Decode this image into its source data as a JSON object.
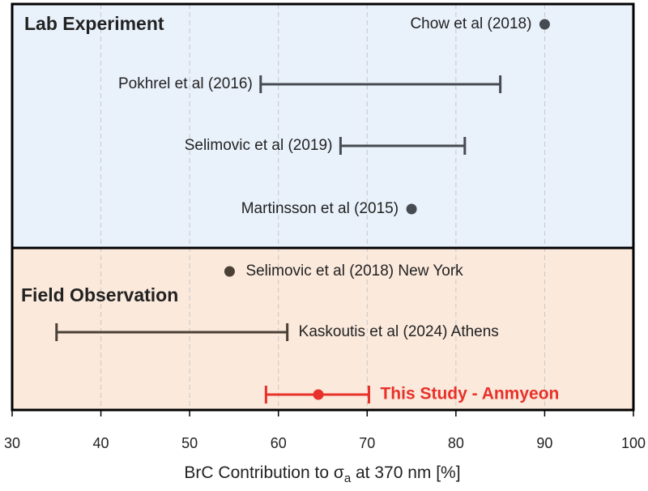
{
  "chart_data": {
    "type": "range",
    "xlabel": [
      "BrC Contribution to σ",
      "a",
      " at 370 nm [%]"
    ],
    "xlim": [
      30,
      100
    ],
    "xticks": [
      30,
      40,
      50,
      60,
      70,
      80,
      90,
      100
    ],
    "grid": true,
    "groups": [
      {
        "name": "Lab Experiment",
        "color": "#e9f1fb",
        "mark_color": "#464b52",
        "items": [
          {
            "label": "Chow et al (2018)",
            "value": 90
          },
          {
            "label": "Pokhrel et al (2016)",
            "low": 58,
            "high": 85
          },
          {
            "label": "Selimovic et al (2019)",
            "low": 67,
            "high": 81
          },
          {
            "label": "Martinsson et al (2015)",
            "value": 75
          }
        ]
      },
      {
        "name": "Field Observation",
        "color": "#fbe9dc",
        "mark_color": "#4a4036",
        "items": [
          {
            "label": "Selimovic et al (2018) New York",
            "value": 54.5
          },
          {
            "label": "Kaskoutis et al (2024) Athens",
            "low": 35,
            "high": 61
          },
          {
            "label": "This Study - Anmyeon",
            "value": 64.5,
            "low": 58.6,
            "high": 70.2,
            "color": "#e8312a"
          }
        ]
      }
    ]
  }
}
